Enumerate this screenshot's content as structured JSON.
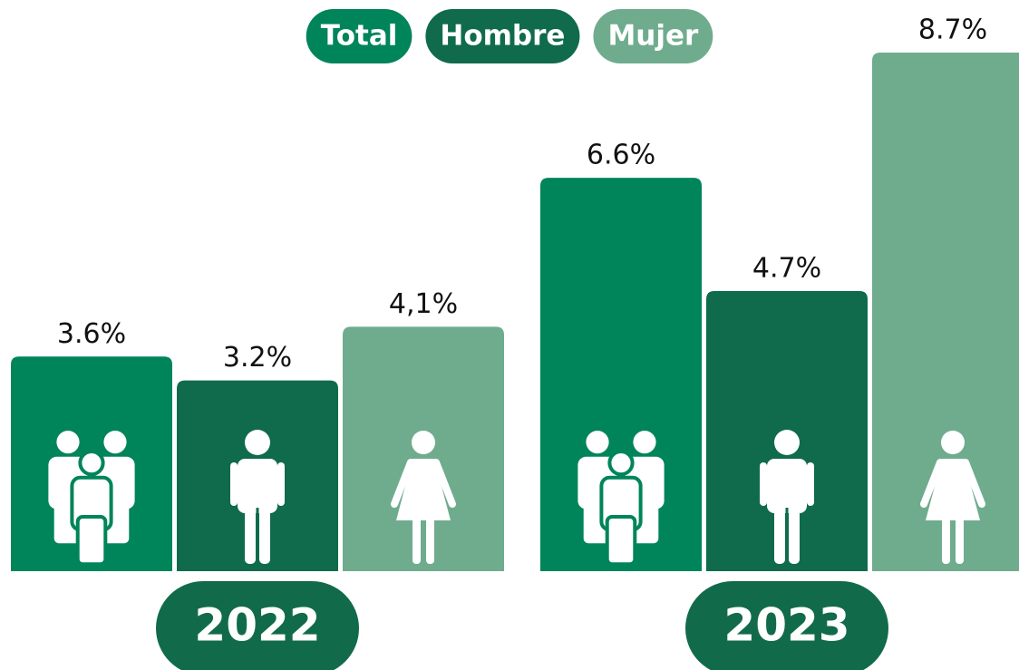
{
  "chart_data": {
    "type": "bar",
    "categories": [
      "2022",
      "2023"
    ],
    "series": [
      {
        "name": "Total",
        "color": "#00845a",
        "values": [
          3.6,
          6.6
        ],
        "value_labels": [
          "3.6%",
          "6.6%"
        ]
      },
      {
        "name": "Hombre",
        "color": "#0f6b4b",
        "values": [
          3.2,
          4.7
        ],
        "value_labels": [
          "3.2%",
          "4.7%"
        ]
      },
      {
        "name": "Mujer",
        "color": "#6fac8e",
        "values": [
          4.1,
          8.7
        ],
        "value_labels": [
          "4,1%",
          "8.7%"
        ]
      }
    ],
    "category_color": "#116b4b"
  }
}
